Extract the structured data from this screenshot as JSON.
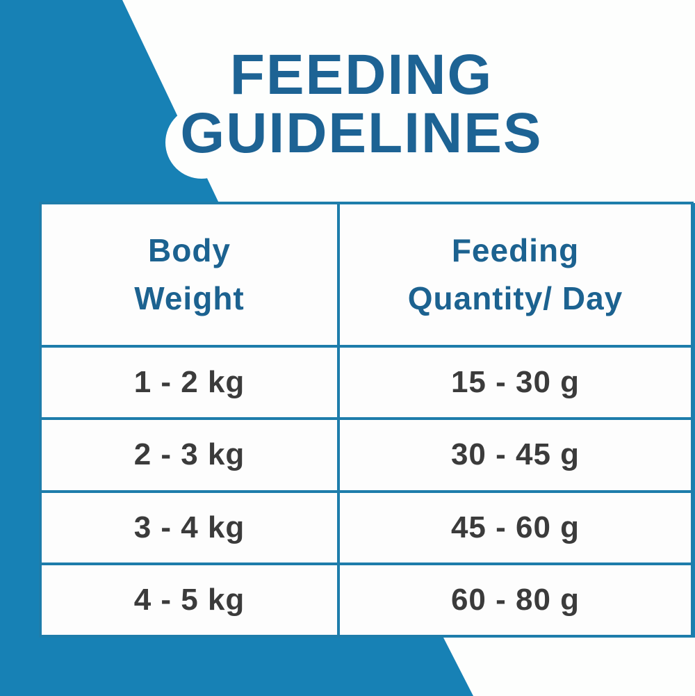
{
  "title": "FEEDING GUIDELINES",
  "table": {
    "headers": [
      "Body Weight",
      "Feeding Quantity/ Day"
    ],
    "rows": [
      [
        "1 - 2 kg",
        "15 - 30 g"
      ],
      [
        "2 - 3 kg",
        "30 - 45 g"
      ],
      [
        "3 - 4 kg",
        "45 - 60 g"
      ],
      [
        "4 - 5 kg",
        "60 - 80 g"
      ]
    ]
  },
  "colors": {
    "background_blue": "#1781b5",
    "title_blue": "#1d6394",
    "header_blue": "#1c6290",
    "table_rule_blue": "#1e7dab",
    "cell_white": "#fdfdfd",
    "data_text_gray": "#3b3b3b"
  },
  "chart_data": {
    "type": "table",
    "title": "FEEDING GUIDELINES",
    "columns": [
      "Body Weight",
      "Feeding Quantity/ Day"
    ],
    "rows": [
      {
        "body_weight": "1 - 2 kg",
        "feeding_quantity_per_day": "15 - 30 g"
      },
      {
        "body_weight": "2 - 3 kg",
        "feeding_quantity_per_day": "30 - 45 g"
      },
      {
        "body_weight": "3 - 4 kg",
        "feeding_quantity_per_day": "45 - 60 g"
      },
      {
        "body_weight": "4 - 5 kg",
        "feeding_quantity_per_day": "60 - 80 g"
      }
    ],
    "units": {
      "body_weight": "kg",
      "feeding_quantity_per_day": "g/day"
    },
    "layout": "two-column bordered table, header row + 4 data rows"
  }
}
